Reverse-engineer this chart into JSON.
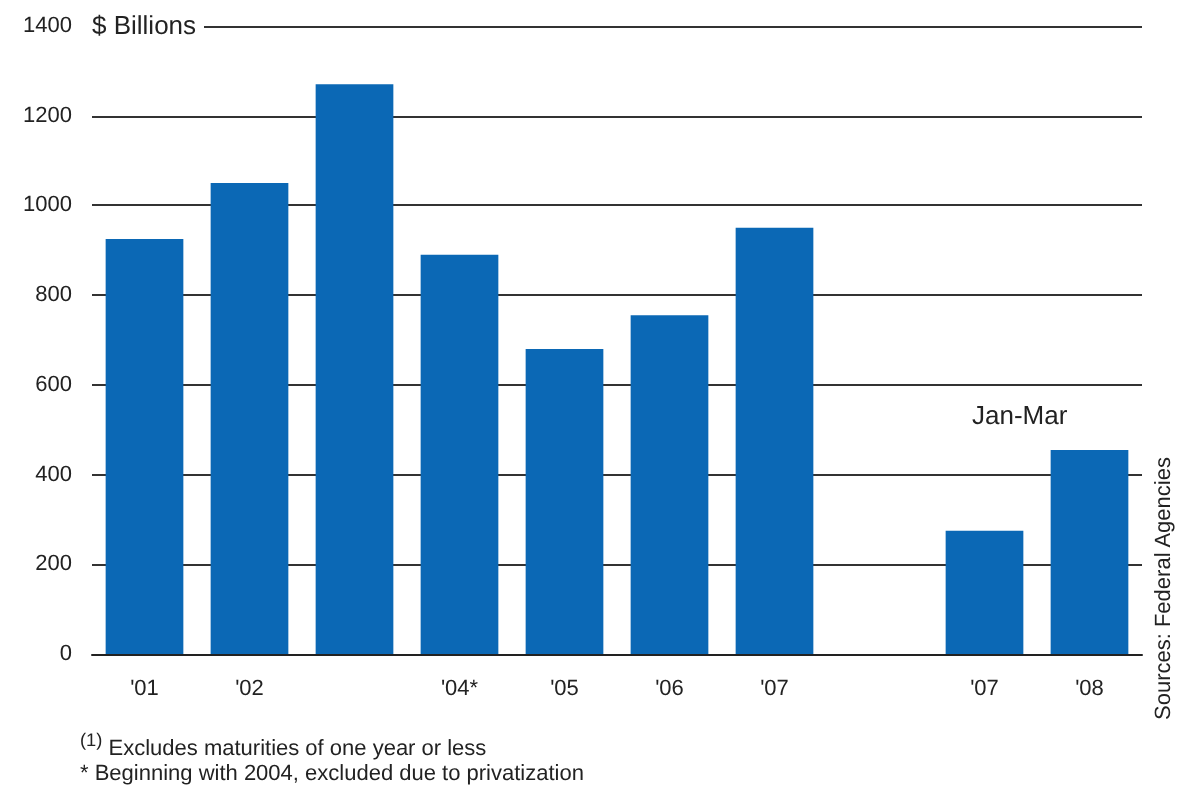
{
  "chart_data": {
    "type": "bar",
    "ylabel": "$ Billions",
    "categories": [
      "'01",
      "'02",
      null,
      "'04*",
      "'05",
      "'06",
      "'07",
      null,
      "'07",
      "'08"
    ],
    "values": [
      925,
      1050,
      1270,
      890,
      680,
      755,
      950,
      null,
      275,
      455
    ],
    "color": "#0b68b5",
    "ylim": [
      0,
      1400
    ],
    "yticks": [
      0,
      200,
      400,
      600,
      800,
      1000,
      1200,
      1400
    ],
    "grid": "y",
    "annotations": [
      "Jan-Mar",
      "$^{(1)}$ Excludes maturities of one year or less",
      "* Beginning with 2004, excluded due to privatization",
      "Sources: Federal Agencies"
    ]
  }
}
